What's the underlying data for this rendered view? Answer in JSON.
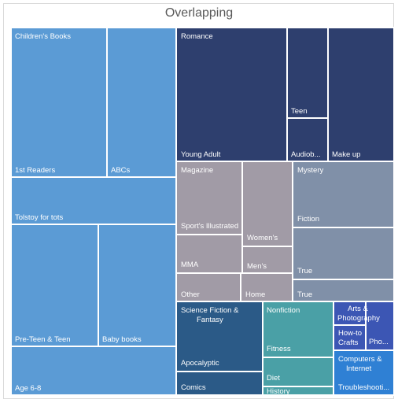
{
  "chart_data": {
    "type": "treemap",
    "title": "Overlapping",
    "colors": {
      "childrens": "#5b9bd5",
      "romance": "#2e3f6e",
      "magazine": "#a19ba6",
      "mystery": "#8090a8",
      "scifi": "#2b5a87",
      "nonfiction": "#4aa0a6",
      "arts": "#3c56b4",
      "computers": "#2f80d4"
    },
    "groups": [
      {
        "name": "Children's Books",
        "color_key": "childrens",
        "value": 80,
        "leaves": [
          {
            "label": "Children's Books",
            "value": 18
          },
          {
            "label": "1st Readers",
            "value": 12
          },
          {
            "label": "ABCs",
            "value": 8
          },
          {
            "label": "Tolstoy for tots",
            "value": 9
          },
          {
            "label": "Pre-Teen & Teen",
            "value": 12
          },
          {
            "label": "Baby books",
            "value": 11
          },
          {
            "label": "Age 6-8",
            "value": 10
          }
        ]
      },
      {
        "name": "Romance",
        "color_key": "romance",
        "value": 45,
        "leaves": [
          {
            "label": "Romance",
            "value": 10
          },
          {
            "label": "Young Adult",
            "value": 10
          },
          {
            "label": "Teen",
            "value": 8
          },
          {
            "label": "Audiob...",
            "value": 5
          },
          {
            "label": "Make up",
            "value": 12
          }
        ]
      },
      {
        "name": "Magazine",
        "color_key": "magazine",
        "value": 28,
        "leaves": [
          {
            "label": "Magazine",
            "value": 6
          },
          {
            "label": "Sport's Illustrated",
            "value": 6
          },
          {
            "label": "Women's",
            "value": 7
          },
          {
            "label": "MMA",
            "value": 3
          },
          {
            "label": "Men's",
            "value": 3
          },
          {
            "label": "Other",
            "value": 2
          },
          {
            "label": "Home",
            "value": 1
          }
        ]
      },
      {
        "name": "Mystery",
        "color_key": "mystery",
        "value": 25,
        "leaves": [
          {
            "label": "Mystery",
            "value": 5
          },
          {
            "label": "Fiction",
            "value": 7
          },
          {
            "label": "True",
            "value": 9
          },
          {
            "label": "True",
            "value": 4
          }
        ]
      },
      {
        "name": "Science Fiction & Fantasy",
        "color_key": "scifi",
        "value": 15,
        "leaves": [
          {
            "label": "Science Fiction & Fantasy",
            "value": 6
          },
          {
            "label": "Apocalyptic",
            "value": 5
          },
          {
            "label": "Comics",
            "value": 4
          }
        ]
      },
      {
        "name": "Nonfiction",
        "color_key": "nonfiction",
        "value": 13,
        "leaves": [
          {
            "label": "Nonfiction",
            "value": 5
          },
          {
            "label": "Fitness",
            "value": 4
          },
          {
            "label": "Diet",
            "value": 3
          },
          {
            "label": "History",
            "value": 1
          }
        ]
      },
      {
        "name": "Arts & Photography",
        "color_key": "arts",
        "value": 5,
        "leaves": [
          {
            "label": "Arts & Photography",
            "value": 2
          },
          {
            "label": "How-to Crafts",
            "value": 2
          },
          {
            "label": "Pho...",
            "value": 1
          }
        ]
      },
      {
        "name": "Computers & Internet",
        "color_key": "computers",
        "value": 4,
        "leaves": [
          {
            "label": "Computers & Internet",
            "value": 2
          },
          {
            "label": "Troubleshooti...",
            "value": 2
          }
        ]
      }
    ]
  }
}
